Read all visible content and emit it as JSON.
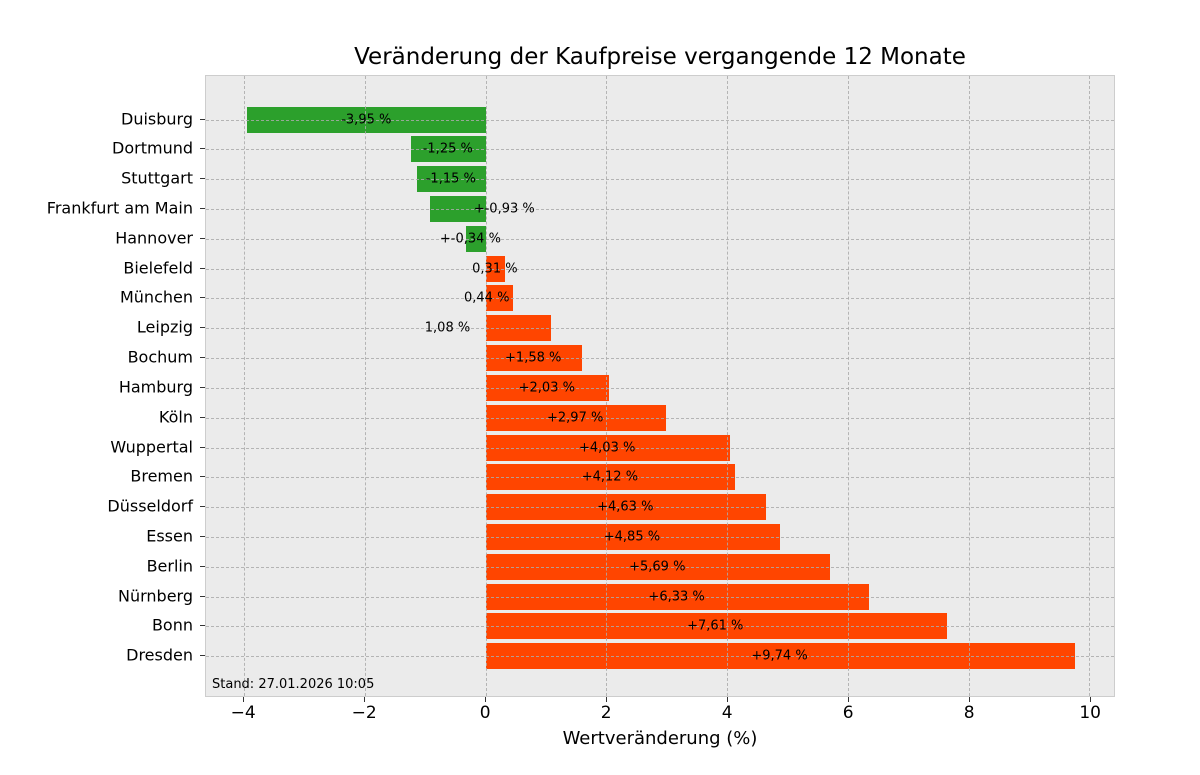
{
  "title": "Veränderung der Kaufpreise vergangende 12 Monate",
  "footnote": "Stand: 27.01.2026 10:05",
  "colors": {
    "positive_bar": "#ff4500",
    "negative_bar": "#2ca02c",
    "plot_background": "#ebebeb",
    "figure_background": "#ffffff",
    "grid": "#aaaaaa"
  },
  "chart_data": {
    "type": "bar",
    "orientation": "horizontal",
    "title": "Veränderung der Kaufpreise vergangende 12 Monate",
    "xlabel": "Wertveränderung (%)",
    "ylabel": "",
    "xlim": [
      -4.63,
      10.41
    ],
    "xticks": [
      -4,
      -2,
      0,
      2,
      4,
      6,
      8,
      10
    ],
    "xtick_labels": [
      "−4",
      "−2",
      "0",
      "2",
      "4",
      "6",
      "8",
      "10"
    ],
    "grid": "dashed, both axes, drawn above bars",
    "legend": false,
    "annotation": "Stand: 27.01.2026 10:05",
    "items": [
      {
        "city": "Duisburg",
        "value": -3.95,
        "label": "-3,95 %",
        "label_x": -1.975
      },
      {
        "city": "Dortmund",
        "value": -1.25,
        "label": "-1,25 %",
        "label_x": -0.625
      },
      {
        "city": "Stuttgart",
        "value": -1.15,
        "label": "-1,15 %",
        "label_x": -0.575
      },
      {
        "city": "Frankfurt am Main",
        "value": -0.93,
        "label": "+-0,93 %",
        "label_x": 0.31
      },
      {
        "city": "Hannover",
        "value": -0.34,
        "label": "+-0,34 %",
        "label_x": -0.25
      },
      {
        "city": "Bielefeld",
        "value": 0.31,
        "label": "0,31 %",
        "label_x": 0.155
      },
      {
        "city": "München",
        "value": 0.44,
        "label": "0,44 %",
        "label_x": 0.02
      },
      {
        "city": "Leipzig",
        "value": 1.08,
        "label": "1,08 %",
        "label_x": -0.63
      },
      {
        "city": "Bochum",
        "value": 1.58,
        "label": "+1,58 %",
        "label_x": 0.79
      },
      {
        "city": "Hamburg",
        "value": 2.03,
        "label": "+2,03 %",
        "label_x": 1.015
      },
      {
        "city": "Köln",
        "value": 2.97,
        "label": "+2,97 %",
        "label_x": 1.485
      },
      {
        "city": "Wuppertal",
        "value": 4.03,
        "label": "+4,03 %",
        "label_x": 2.015
      },
      {
        "city": "Bremen",
        "value": 4.12,
        "label": "+4,12 %",
        "label_x": 2.06
      },
      {
        "city": "Düsseldorf",
        "value": 4.63,
        "label": "+4,63 %",
        "label_x": 2.315
      },
      {
        "city": "Essen",
        "value": 4.85,
        "label": "+4,85 %",
        "label_x": 2.425
      },
      {
        "city": "Berlin",
        "value": 5.69,
        "label": "+5,69 %",
        "label_x": 2.845
      },
      {
        "city": "Nürnberg",
        "value": 6.33,
        "label": "+6,33 %",
        "label_x": 3.165
      },
      {
        "city": "Bonn",
        "value": 7.61,
        "label": "+7,61 %",
        "label_x": 3.805
      },
      {
        "city": "Dresden",
        "value": 9.74,
        "label": "+9,74 %",
        "label_x": 4.87
      }
    ]
  }
}
